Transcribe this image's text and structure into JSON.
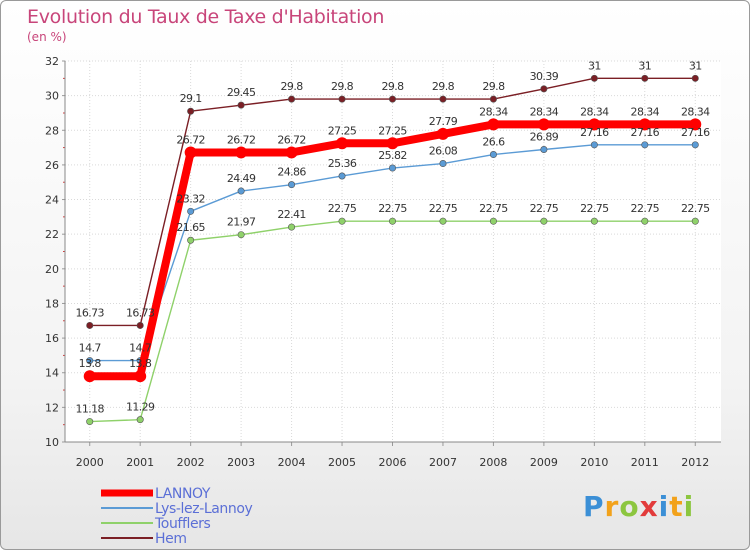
{
  "header": {
    "title": "Evolution du Taux de Taxe d'Habitation",
    "unit": "(en %)"
  },
  "logo": {
    "text": "Proxiti",
    "colors": [
      "#3b8fd6",
      "#f2a21b",
      "#8cc63f",
      "#e23b3b",
      "#3b8fd6",
      "#f2a21b",
      "#8cc63f"
    ]
  },
  "chart_data": {
    "type": "line",
    "categories": [
      "2000",
      "2001",
      "2002",
      "2003",
      "2004",
      "2005",
      "2006",
      "2007",
      "2008",
      "2009",
      "2010",
      "2011",
      "2012"
    ],
    "ylim": [
      10,
      32
    ],
    "yticks": [
      10,
      12,
      14,
      16,
      18,
      20,
      22,
      24,
      26,
      28,
      30,
      32
    ],
    "grid": true,
    "legend_position": "bottom-left",
    "series": [
      {
        "name": "Hem",
        "color": "#7b1f25",
        "values": [
          16.73,
          16.73,
          29.1,
          29.45,
          29.8,
          29.8,
          29.8,
          29.8,
          29.8,
          30.39,
          31,
          31,
          31
        ],
        "labels": [
          "16.73",
          "16.73",
          "29.1",
          "29.45",
          "29.8",
          "29.8",
          "29.8",
          "29.8",
          "29.8",
          "30.39",
          "31",
          "31",
          "31"
        ]
      },
      {
        "name": "Lys-lez-Lannoy",
        "color": "#5b9bd5",
        "values": [
          14.7,
          14.7,
          23.32,
          24.49,
          24.86,
          25.36,
          25.82,
          26.08,
          26.6,
          26.89,
          27.16,
          27.16,
          27.16
        ],
        "labels": [
          "14.7",
          "14.7",
          "23.32",
          "24.49",
          "24.86",
          "25.36",
          "25.82",
          "26.08",
          "26.6",
          "26.89",
          "27.16",
          "27.16",
          "27.16"
        ]
      },
      {
        "name": "Toufflers",
        "color": "#8fd16a",
        "values": [
          11.18,
          11.29,
          21.65,
          21.97,
          22.41,
          22.75,
          22.75,
          22.75,
          22.75,
          22.75,
          22.75,
          22.75,
          22.75
        ],
        "labels": [
          "11.18",
          "11.29",
          "21.65",
          "21.97",
          "22.41",
          "22.75",
          "22.75",
          "22.75",
          "22.75",
          "22.75",
          "22.75",
          "22.75",
          "22.75"
        ]
      },
      {
        "name": "LANNOY",
        "color": "#ff0000",
        "values": [
          13.8,
          13.8,
          26.72,
          26.72,
          26.72,
          27.25,
          27.25,
          27.79,
          28.34,
          28.34,
          28.34,
          28.34,
          28.34
        ],
        "labels": [
          "13.8",
          "13.8",
          "26.72",
          "26.72",
          "26.72",
          "27.25",
          "27.25",
          "27.79",
          "28.34",
          "28.34",
          "28.34",
          "28.34",
          "28.34"
        ]
      }
    ],
    "legend": [
      {
        "name": "LANNOY",
        "color": "#ff0000"
      },
      {
        "name": "Lys-lez-Lannoy",
        "color": "#5b9bd5"
      },
      {
        "name": "Toufflers",
        "color": "#8fd16a"
      },
      {
        "name": "Hem",
        "color": "#7b1f25"
      }
    ]
  }
}
